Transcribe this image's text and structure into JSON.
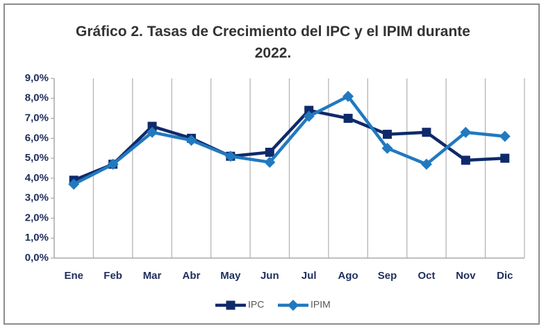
{
  "chart_data": {
    "type": "line",
    "title": "Gráfico 2. Tasas de Crecimiento del IPC y el IPIM durante 2022.",
    "categories": [
      "Ene",
      "Feb",
      "Mar",
      "Abr",
      "May",
      "Jun",
      "Jul",
      "Ago",
      "Sep",
      "Oct",
      "Nov",
      "Dic"
    ],
    "series": [
      {
        "name": "IPC",
        "color": "#0f2a6b",
        "marker": "square",
        "values": [
          3.9,
          4.7,
          6.6,
          6.0,
          5.1,
          5.3,
          7.4,
          7.0,
          6.2,
          6.3,
          4.9,
          5.0
        ]
      },
      {
        "name": "IPIM",
        "color": "#2179bf",
        "marker": "diamond",
        "values": [
          3.7,
          4.7,
          6.3,
          5.9,
          5.1,
          4.8,
          7.1,
          8.1,
          5.5,
          4.7,
          6.3,
          6.1
        ]
      }
    ],
    "ylim": [
      0,
      9
    ],
    "yticks": [
      {
        "value": 0,
        "label": "0,0%"
      },
      {
        "value": 1,
        "label": "1,0%"
      },
      {
        "value": 2,
        "label": "2,0%"
      },
      {
        "value": 3,
        "label": "3,0%"
      },
      {
        "value": 4,
        "label": "4,0%"
      },
      {
        "value": 5,
        "label": "5,0%"
      },
      {
        "value": 6,
        "label": "6,0%"
      },
      {
        "value": 7,
        "label": "7,0%"
      },
      {
        "value": 8,
        "label": "8,0%"
      },
      {
        "value": 9,
        "label": "9,0%"
      }
    ],
    "legend": "bottom"
  }
}
